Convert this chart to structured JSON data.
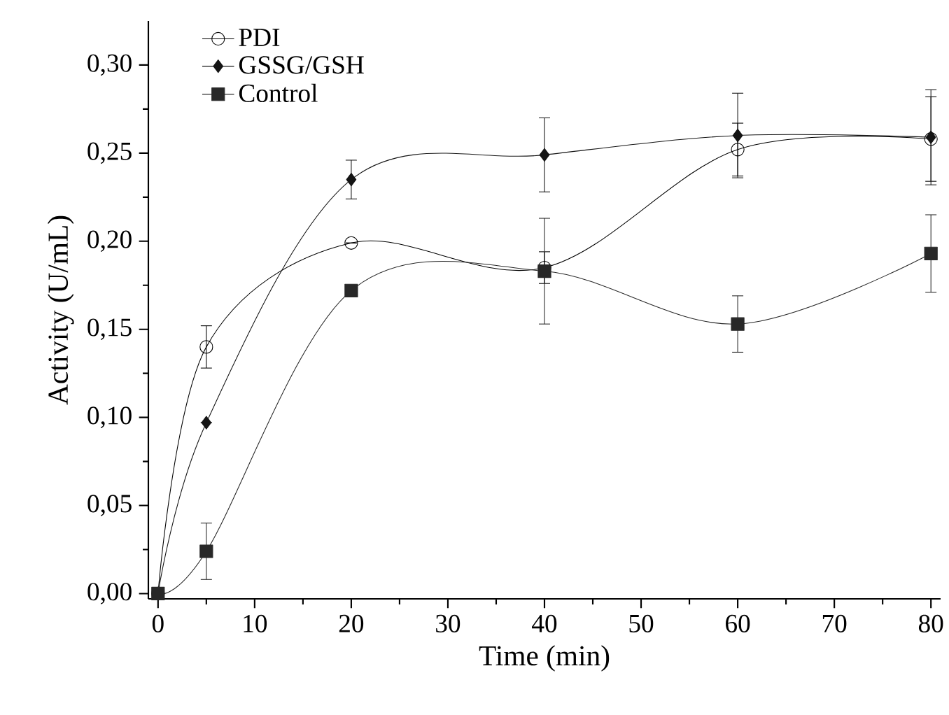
{
  "chart_data": {
    "type": "line",
    "xlabel": "Time (min)",
    "ylabel": "Activity (U/mL)",
    "xlim": [
      -1,
      81
    ],
    "ylim": [
      -0.003,
      0.325
    ],
    "xticks": [
      0,
      10,
      20,
      30,
      40,
      50,
      60,
      70,
      80
    ],
    "yticks": [
      {
        "value": 0,
        "label": "0,00"
      },
      {
        "value": 0.05,
        "label": "0,05"
      },
      {
        "value": 0.1,
        "label": "0,10"
      },
      {
        "value": 0.15,
        "label": "0,15"
      },
      {
        "value": 0.2,
        "label": "0,20"
      },
      {
        "value": 0.25,
        "label": "0,25"
      },
      {
        "value": 0.3,
        "label": "0,30"
      }
    ],
    "x": [
      0,
      5,
      20,
      40,
      60,
      80
    ],
    "legend": "top left",
    "grid": false,
    "line_style": "solid",
    "series": [
      {
        "name": "PDI",
        "color": "#000000",
        "marker": "circle",
        "values": [
          0,
          0.14,
          0.199,
          0.185,
          0.252,
          0.258
        ],
        "errors": [
          null,
          0.012,
          null,
          0.009,
          0.015,
          0.024
        ]
      },
      {
        "name": "GSSG/GSH",
        "color": "#141414",
        "marker": "diamond",
        "values": [
          0,
          0.097,
          0.235,
          0.249,
          0.26,
          0.259
        ],
        "errors": [
          null,
          null,
          0.011,
          0.021,
          0.024,
          0.027
        ]
      },
      {
        "name": "Control",
        "color": "#282828",
        "marker": "square",
        "values": [
          0,
          0.024,
          0.172,
          0.183,
          0.153,
          0.193
        ],
        "errors": [
          null,
          0.016,
          null,
          0.03,
          0.016,
          0.022
        ]
      }
    ]
  }
}
